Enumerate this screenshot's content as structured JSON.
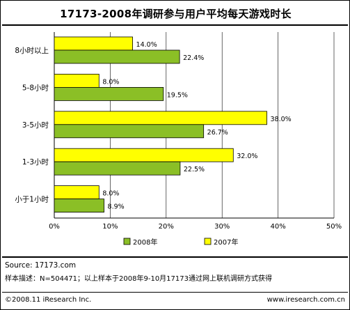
{
  "title": "17173-2008年调研参与用户平均每天游戏时长",
  "colors": {
    "series_2008": "#8bbf26",
    "series_2007": "#ffff00",
    "grid": "#000000"
  },
  "chart_data": {
    "type": "bar",
    "orientation": "horizontal",
    "categories": [
      "8小时以上",
      "5-8小时",
      "3-5小时",
      "1-3小时",
      "小于1小时"
    ],
    "series": [
      {
        "name": "2007年",
        "values": [
          14.0,
          8.0,
          38.0,
          32.0,
          8.0
        ],
        "labels": [
          "14.0%",
          "8.0%",
          "38.0%",
          "32.0%",
          "8.0%"
        ]
      },
      {
        "name": "2008年",
        "values": [
          22.4,
          19.5,
          26.7,
          22.5,
          8.9
        ],
        "labels": [
          "22.4%",
          "19.5%",
          "26.7%",
          "22.5%",
          "8.9%"
        ]
      }
    ],
    "xlim": [
      0,
      50
    ],
    "x_ticks": [
      "0%",
      "10%",
      "20%",
      "30%",
      "40%",
      "50%"
    ],
    "grid": true,
    "legend_position": "bottom",
    "legend": [
      "2008年",
      "2007年"
    ]
  },
  "footer": {
    "source": "Source:  17173.com",
    "sample": "样本描述：N=504471；以上样本于2008年9-10月17173通过网上联机调研方式获得",
    "copyright": "©2008.11 iResearch Inc.",
    "website": "www.iresearch.com.cn"
  }
}
